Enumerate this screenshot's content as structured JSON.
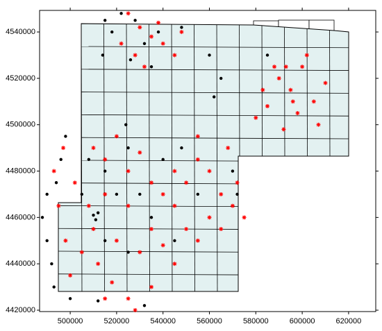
{
  "chart_data": {
    "type": "scatter",
    "xlim": [
      486800,
      631700
    ],
    "ylim": [
      4419400,
      4549300
    ],
    "xticks": [
      500000,
      520000,
      540000,
      560000,
      580000,
      600000,
      620000
    ],
    "yticks": [
      4420000,
      4440000,
      4460000,
      4480000,
      4500000,
      4520000,
      4540000
    ],
    "series": [
      {
        "color": "#ff0000",
        "marker": "asterisk",
        "x": [
          590000,
          595000,
          600000,
          585000,
          605000,
          598000,
          592000,
          610000,
          588000,
          602000,
          583000,
          596000,
          607000,
          580000,
          593000,
          525000,
          530000,
          535000,
          540000,
          545000,
          528000,
          522000,
          548000,
          532000,
          538000,
          510000,
          515000,
          520000,
          525000,
          530000,
          535000,
          540000,
          545000,
          550000,
          555000,
          560000,
          565000,
          570000,
          560000,
          550000,
          545000,
          535000,
          525000,
          515000,
          510000,
          520000,
          530000,
          540000,
          555000,
          565000,
          512000,
          518000,
          525000,
          535000,
          545000,
          505000,
          500000,
          498000,
          495000,
          493000,
          497000,
          502000,
          508000,
          555000,
          568000,
          572000,
          575000,
          528000,
          515000
        ],
        "values": [
          4520000,
          4515000,
          4525000,
          4508000,
          4510000,
          4505000,
          4498000,
          4518000,
          4525000,
          4530000,
          4515000,
          4510000,
          4500000,
          4503000,
          4525000,
          4548000,
          4542000,
          4538000,
          4535000,
          4530000,
          4530000,
          4535000,
          4540000,
          4525000,
          4544000,
          4490000,
          4485000,
          4495000,
          4480000,
          4488000,
          4475000,
          4470000,
          4480000,
          4475000,
          4485000,
          4480000,
          4470000,
          4465000,
          4460000,
          4455000,
          4465000,
          4455000,
          4465000,
          4470000,
          4455000,
          4450000,
          4445000,
          4448000,
          4450000,
          4455000,
          4440000,
          4432000,
          4425000,
          4430000,
          4440000,
          4445000,
          4435000,
          4450000,
          4465000,
          4480000,
          4490000,
          4475000,
          4465000,
          4495000,
          4490000,
          4475000,
          4460000,
          4420000,
          4425000
        ]
      },
      {
        "color": "#000000",
        "marker": "circle",
        "x": [
          522000,
          528000,
          518000,
          532000,
          526000,
          514000,
          538000,
          548000,
          515000,
          535000,
          560000,
          565000,
          562000,
          585000,
          488000,
          490000,
          492000,
          490000,
          494000,
          496000,
          498000,
          493000,
          500000,
          510000,
          512000,
          511000,
          508000,
          515000,
          525000,
          530000,
          540000,
          548000,
          555000,
          520000,
          535000,
          545000,
          525000,
          515000,
          570000,
          572000,
          505000,
          532000,
          512000,
          524000
        ],
        "values": [
          4548000,
          4545000,
          4540000,
          4535000,
          4528000,
          4530000,
          4540000,
          4542000,
          4545000,
          4525000,
          4530000,
          4520000,
          4512000,
          4530000,
          4460000,
          4450000,
          4440000,
          4470000,
          4475000,
          4485000,
          4495000,
          4430000,
          4425000,
          4461000,
          4462000,
          4459000,
          4485000,
          4480000,
          4490000,
          4470000,
          4485000,
          4490000,
          4470000,
          4470000,
          4460000,
          4450000,
          4445000,
          4450000,
          4480000,
          4470000,
          4470000,
          4422000,
          4424000,
          4500000
        ]
      }
    ]
  }
}
